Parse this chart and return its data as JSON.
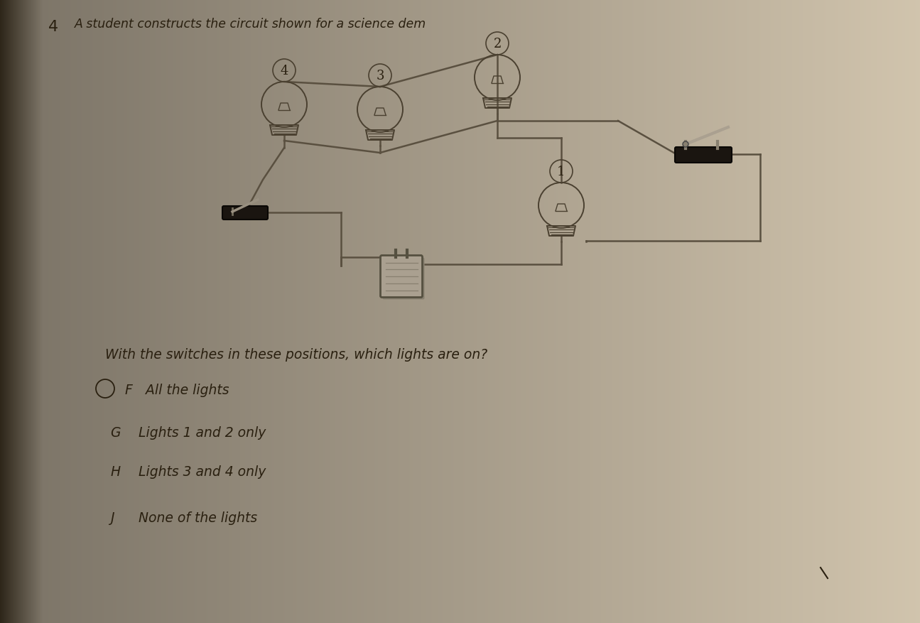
{
  "bg_color_main": "#d4d0be",
  "bg_color_left": "#8a8070",
  "bg_color_right": "#ccc8b5",
  "question_number": "4",
  "title_text": "A student constructs the circuit shown for a science dem",
  "question_text": "With the switches in these positions, which lights are on?",
  "answer_F_letter": "F",
  "answer_F_text": "All the lights",
  "answer_G_letter": "G",
  "answer_G_text": "Lights 1 and 2 only",
  "answer_H_letter": "H",
  "answer_H_text": "Lights 3 and 4 only",
  "answer_J_letter": "J",
  "answer_J_text": "None of the lights",
  "wire_color": "#5a5040",
  "component_color": "#4a4030",
  "label_color": "#333020",
  "text_color": "#2a2010"
}
